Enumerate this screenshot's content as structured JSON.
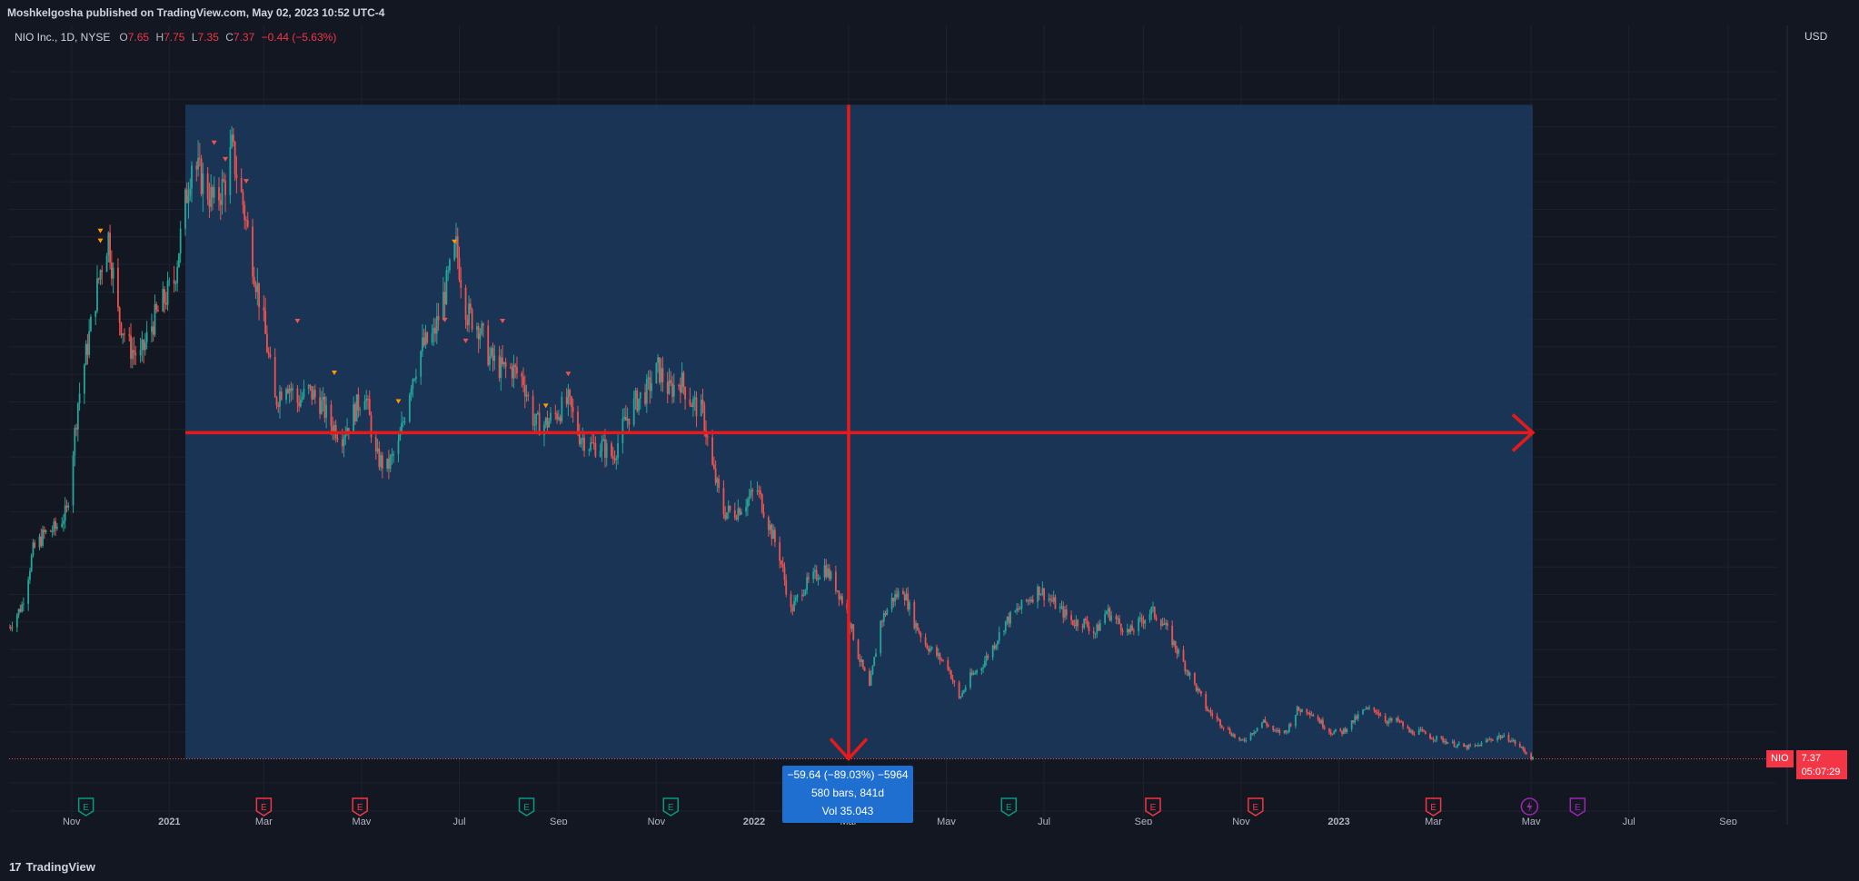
{
  "publish_line": "Moshkelgosha published on TradingView.com, May 02, 2023 10:52 UTC-4",
  "legend": {
    "title": "NIO Inc., 1D, NYSE",
    "o_label": "O",
    "o_value": "7.65",
    "h_label": "H",
    "h_value": "7.75",
    "l_label": "L",
    "l_value": "7.35",
    "c_label": "C",
    "c_value": "7.37",
    "change": "−0.44 (−5.63%)"
  },
  "currency": "USD",
  "price_tag": {
    "symbol": "NIO",
    "price": "7.37",
    "countdown": "05:07:29"
  },
  "measure": {
    "line1": "−59.64 (−89.03%) −5964",
    "line2": "580 bars, 841d",
    "line3": "Vol 35.043"
  },
  "footer": {
    "brand": "TradingView",
    "logo": "17"
  },
  "colors": {
    "background": "#131722",
    "up": "#26a69a",
    "down": "#ef5350",
    "range_fill": "#1c3a5e",
    "arrow": "#e61a1a",
    "event_green": "#089981",
    "event_red": "#f23645",
    "event_purple": "#9c27b0",
    "measure_box": "#1f6fd1"
  },
  "chart_data": {
    "type": "candlestick",
    "symbol": "NIO",
    "interval": "1D",
    "exchange": "NYSE",
    "x_range": [
      "2020-09-23",
      "2023-10-05"
    ],
    "ylim": [
      0,
      72.5
    ],
    "y_ticks": [
      "70.00",
      "67.50",
      "65.00",
      "62.50",
      "60.00",
      "57.50",
      "55.00",
      "52.50",
      "50.00",
      "47.50",
      "45.00",
      "42.50",
      "40.00",
      "37.50",
      "35.00",
      "32.50",
      "30.00",
      "27.50",
      "25.00",
      "22.50",
      "20.00",
      "17.50",
      "15.00",
      "12.50",
      "10.00",
      "5.00",
      "2.50"
    ],
    "x_ticks": [
      {
        "label": "Nov",
        "date": "2020-11-01"
      },
      {
        "label": "2021",
        "date": "2021-01-01"
      },
      {
        "label": "Mar",
        "date": "2021-03-01"
      },
      {
        "label": "May",
        "date": "2021-05-01"
      },
      {
        "label": "Jul",
        "date": "2021-07-01"
      },
      {
        "label": "Sep",
        "date": "2021-09-01"
      },
      {
        "label": "Nov",
        "date": "2021-11-01"
      },
      {
        "label": "2022",
        "date": "2022-01-01"
      },
      {
        "label": "Mar",
        "date": "2022-03-01"
      },
      {
        "label": "May",
        "date": "2022-05-01"
      },
      {
        "label": "Jul",
        "date": "2022-07-01"
      },
      {
        "label": "Sep",
        "date": "2022-09-01"
      },
      {
        "label": "Nov",
        "date": "2022-11-01"
      },
      {
        "label": "2023",
        "date": "2023-01-01"
      },
      {
        "label": "Mar",
        "date": "2023-03-01"
      },
      {
        "label": "May",
        "date": "2023-05-01"
      },
      {
        "label": "Jul",
        "date": "2023-07-01"
      },
      {
        "label": "Sep",
        "date": "2023-09-01"
      }
    ],
    "price_path": [
      [
        "2020-09-23",
        19.5
      ],
      [
        "2020-10-01",
        21.5
      ],
      [
        "2020-10-08",
        26.5
      ],
      [
        "2020-10-15",
        28
      ],
      [
        "2020-10-22",
        28.5
      ],
      [
        "2020-10-29",
        30
      ],
      [
        "2020-11-05",
        40
      ],
      [
        "2020-11-12",
        46
      ],
      [
        "2020-11-19",
        52
      ],
      [
        "2020-11-24",
        55
      ],
      [
        "2020-11-30",
        48
      ],
      [
        "2020-12-07",
        45
      ],
      [
        "2020-12-14",
        44
      ],
      [
        "2020-12-21",
        47
      ],
      [
        "2020-12-28",
        49
      ],
      [
        "2021-01-04",
        51
      ],
      [
        "2021-01-11",
        58
      ],
      [
        "2021-01-15",
        62
      ],
      [
        "2021-01-22",
        60
      ],
      [
        "2021-01-29",
        58
      ],
      [
        "2021-02-05",
        60
      ],
      [
        "2021-02-09",
        63
      ],
      [
        "2021-02-16",
        58
      ],
      [
        "2021-02-23",
        52
      ],
      [
        "2021-03-01",
        47
      ],
      [
        "2021-03-08",
        40
      ],
      [
        "2021-03-15",
        42
      ],
      [
        "2021-03-22",
        40
      ],
      [
        "2021-03-29",
        41
      ],
      [
        "2021-04-05",
        40
      ],
      [
        "2021-04-12",
        38
      ],
      [
        "2021-04-19",
        37
      ],
      [
        "2021-04-26",
        39
      ],
      [
        "2021-05-03",
        41
      ],
      [
        "2021-05-10",
        35
      ],
      [
        "2021-05-17",
        34
      ],
      [
        "2021-05-24",
        36
      ],
      [
        "2021-06-01",
        42
      ],
      [
        "2021-06-08",
        45
      ],
      [
        "2021-06-15",
        46
      ],
      [
        "2021-06-22",
        50
      ],
      [
        "2021-06-29",
        54
      ],
      [
        "2021-07-06",
        48
      ],
      [
        "2021-07-13",
        47
      ],
      [
        "2021-07-20",
        44
      ],
      [
        "2021-07-27",
        43
      ],
      [
        "2021-08-03",
        43
      ],
      [
        "2021-08-10",
        42
      ],
      [
        "2021-08-17",
        38
      ],
      [
        "2021-08-24",
        38
      ],
      [
        "2021-08-31",
        39
      ],
      [
        "2021-09-07",
        40
      ],
      [
        "2021-09-14",
        37
      ],
      [
        "2021-09-21",
        36
      ],
      [
        "2021-09-28",
        36
      ],
      [
        "2021-10-05",
        35
      ],
      [
        "2021-10-12",
        38
      ],
      [
        "2021-10-19",
        40
      ],
      [
        "2021-10-26",
        41
      ],
      [
        "2021-11-02",
        43
      ],
      [
        "2021-11-09",
        41
      ],
      [
        "2021-11-16",
        42
      ],
      [
        "2021-11-23",
        40
      ],
      [
        "2021-11-30",
        39
      ],
      [
        "2021-12-06",
        34
      ],
      [
        "2021-12-13",
        30
      ],
      [
        "2021-12-20",
        30
      ],
      [
        "2021-12-27",
        31
      ],
      [
        "2022-01-03",
        32
      ],
      [
        "2022-01-10",
        29
      ],
      [
        "2022-01-17",
        26
      ],
      [
        "2022-01-24",
        21
      ],
      [
        "2022-01-31",
        23
      ],
      [
        "2022-02-07",
        24
      ],
      [
        "2022-02-14",
        25
      ],
      [
        "2022-02-22",
        23
      ],
      [
        "2022-02-28",
        21
      ],
      [
        "2022-03-07",
        17
      ],
      [
        "2022-03-14",
        14
      ],
      [
        "2022-03-21",
        20
      ],
      [
        "2022-03-28",
        22
      ],
      [
        "2022-04-04",
        23
      ],
      [
        "2022-04-11",
        20
      ],
      [
        "2022-04-18",
        18
      ],
      [
        "2022-04-25",
        17
      ],
      [
        "2022-05-02",
        16
      ],
      [
        "2022-05-09",
        13
      ],
      [
        "2022-05-16",
        15
      ],
      [
        "2022-05-23",
        16
      ],
      [
        "2022-05-31",
        18
      ],
      [
        "2022-06-07",
        20
      ],
      [
        "2022-06-14",
        21
      ],
      [
        "2022-06-21",
        22
      ],
      [
        "2022-06-28",
        23
      ],
      [
        "2022-07-05",
        22
      ],
      [
        "2022-07-12",
        21
      ],
      [
        "2022-07-19",
        20
      ],
      [
        "2022-07-26",
        20
      ],
      [
        "2022-08-02",
        19
      ],
      [
        "2022-08-09",
        21
      ],
      [
        "2022-08-16",
        20
      ],
      [
        "2022-08-23",
        19
      ],
      [
        "2022-08-30",
        20
      ],
      [
        "2022-09-06",
        21
      ],
      [
        "2022-09-13",
        20
      ],
      [
        "2022-09-20",
        18
      ],
      [
        "2022-09-27",
        16
      ],
      [
        "2022-10-04",
        14
      ],
      [
        "2022-10-11",
        12
      ],
      [
        "2022-10-18",
        11
      ],
      [
        "2022-10-25",
        10
      ],
      [
        "2022-11-01",
        9
      ],
      [
        "2022-11-08",
        10
      ],
      [
        "2022-11-15",
        11
      ],
      [
        "2022-11-22",
        10
      ],
      [
        "2022-11-29",
        10
      ],
      [
        "2022-12-06",
        12
      ],
      [
        "2022-12-13",
        12
      ],
      [
        "2022-12-20",
        11
      ],
      [
        "2022-12-27",
        10
      ],
      [
        "2023-01-03",
        10
      ],
      [
        "2023-01-10",
        11
      ],
      [
        "2023-01-17",
        12
      ],
      [
        "2023-01-24",
        12
      ],
      [
        "2023-01-31",
        11
      ],
      [
        "2023-02-07",
        11
      ],
      [
        "2023-02-14",
        10
      ],
      [
        "2023-02-21",
        10
      ],
      [
        "2023-02-28",
        9.5
      ],
      [
        "2023-03-07",
        9.2
      ],
      [
        "2023-03-14",
        8.8
      ],
      [
        "2023-03-21",
        8.5
      ],
      [
        "2023-03-28",
        8.6
      ],
      [
        "2023-04-04",
        9.2
      ],
      [
        "2023-04-11",
        9.6
      ],
      [
        "2023-04-18",
        9.3
      ],
      [
        "2023-04-25",
        8.4
      ],
      [
        "2023-05-02",
        7.37
      ]
    ],
    "range": {
      "start": "2021-01-11",
      "end": "2023-05-02",
      "high": 67.0,
      "low": 7.37,
      "arrow_y": 37.2,
      "arrow_x_date": "2022-03-01"
    },
    "event_markers": [
      {
        "date": "2020-11-10",
        "type": "E",
        "color": "green"
      },
      {
        "date": "2021-03-01",
        "type": "E",
        "color": "red"
      },
      {
        "date": "2021-04-30",
        "type": "E",
        "color": "red"
      },
      {
        "date": "2021-08-12",
        "type": "E",
        "color": "green"
      },
      {
        "date": "2021-11-10",
        "type": "E",
        "color": "green"
      },
      {
        "date": "2022-03-24",
        "type": "E",
        "color": "red"
      },
      {
        "date": "2022-06-09",
        "type": "E",
        "color": "green"
      },
      {
        "date": "2022-09-07",
        "type": "E",
        "color": "red"
      },
      {
        "date": "2022-11-10",
        "type": "E",
        "color": "red"
      },
      {
        "date": "2023-03-01",
        "type": "E",
        "color": "red"
      },
      {
        "date": "2023-04-30",
        "type": "lightning",
        "color": "purple"
      },
      {
        "date": "2023-05-30",
        "type": "E",
        "color": "purple"
      }
    ]
  }
}
